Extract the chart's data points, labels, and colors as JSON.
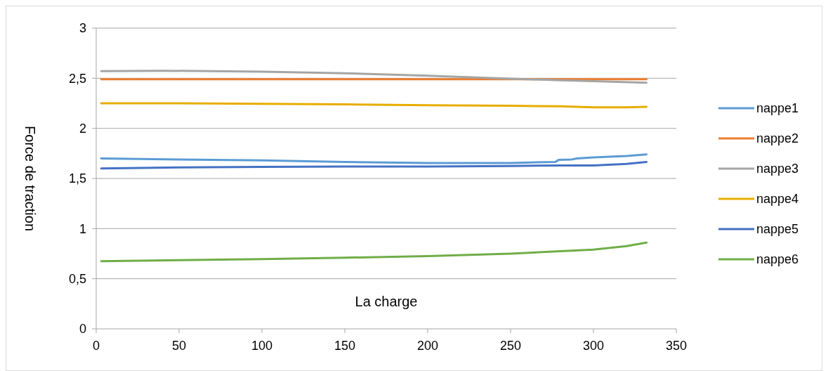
{
  "chart_data": {
    "type": "line",
    "xlabel": "La charge",
    "ylabel": "Force de traction",
    "xlim": [
      0,
      350
    ],
    "xticks": [
      0,
      50,
      100,
      150,
      200,
      250,
      300,
      350
    ],
    "ylim": [
      0,
      3
    ],
    "yticks": [
      0,
      {
        "value": 0.5,
        "label": "0,5"
      },
      1,
      {
        "value": 1.5,
        "label": "1,5"
      },
      2,
      {
        "value": 2.5,
        "label": "2,5"
      },
      3
    ],
    "grid": "y",
    "legend": "right",
    "line_style": "solid",
    "series": [
      {
        "name": "nappe1",
        "color": "#5b9bd5",
        "x": [
          3,
          50,
          100,
          150,
          200,
          250,
          277,
          279,
          287,
          290,
          300,
          320,
          332
        ],
        "values": [
          1.7,
          1.69,
          1.68,
          1.665,
          1.655,
          1.655,
          1.665,
          1.685,
          1.69,
          1.7,
          1.71,
          1.725,
          1.74
        ]
      },
      {
        "name": "nappe2",
        "color": "#ed7d31",
        "x": [
          3,
          100,
          200,
          300,
          332
        ],
        "values": [
          2.49,
          2.49,
          2.49,
          2.49,
          2.49
        ]
      },
      {
        "name": "nappe3",
        "color": "#a5a5a5",
        "x": [
          3,
          40,
          100,
          150,
          200,
          250,
          280,
          300,
          332
        ],
        "values": [
          2.57,
          2.575,
          2.565,
          2.55,
          2.525,
          2.495,
          2.48,
          2.47,
          2.455
        ]
      },
      {
        "name": "nappe4",
        "color": "#e8ad00",
        "x": [
          3,
          50,
          100,
          150,
          200,
          250,
          280,
          300,
          320,
          332
        ],
        "values": [
          2.25,
          2.25,
          2.245,
          2.24,
          2.23,
          2.225,
          2.22,
          2.21,
          2.21,
          2.215
        ]
      },
      {
        "name": "nappe5",
        "color": "#4472c4",
        "x": [
          3,
          50,
          100,
          150,
          200,
          250,
          280,
          300,
          320,
          332
        ],
        "values": [
          1.6,
          1.61,
          1.615,
          1.62,
          1.62,
          1.625,
          1.63,
          1.63,
          1.645,
          1.665
        ]
      },
      {
        "name": "nappe6",
        "color": "#70ad47",
        "x": [
          3,
          50,
          100,
          150,
          200,
          250,
          280,
          300,
          320,
          332
        ],
        "values": [
          0.675,
          0.685,
          0.695,
          0.71,
          0.725,
          0.75,
          0.775,
          0.79,
          0.825,
          0.86
        ]
      }
    ]
  }
}
